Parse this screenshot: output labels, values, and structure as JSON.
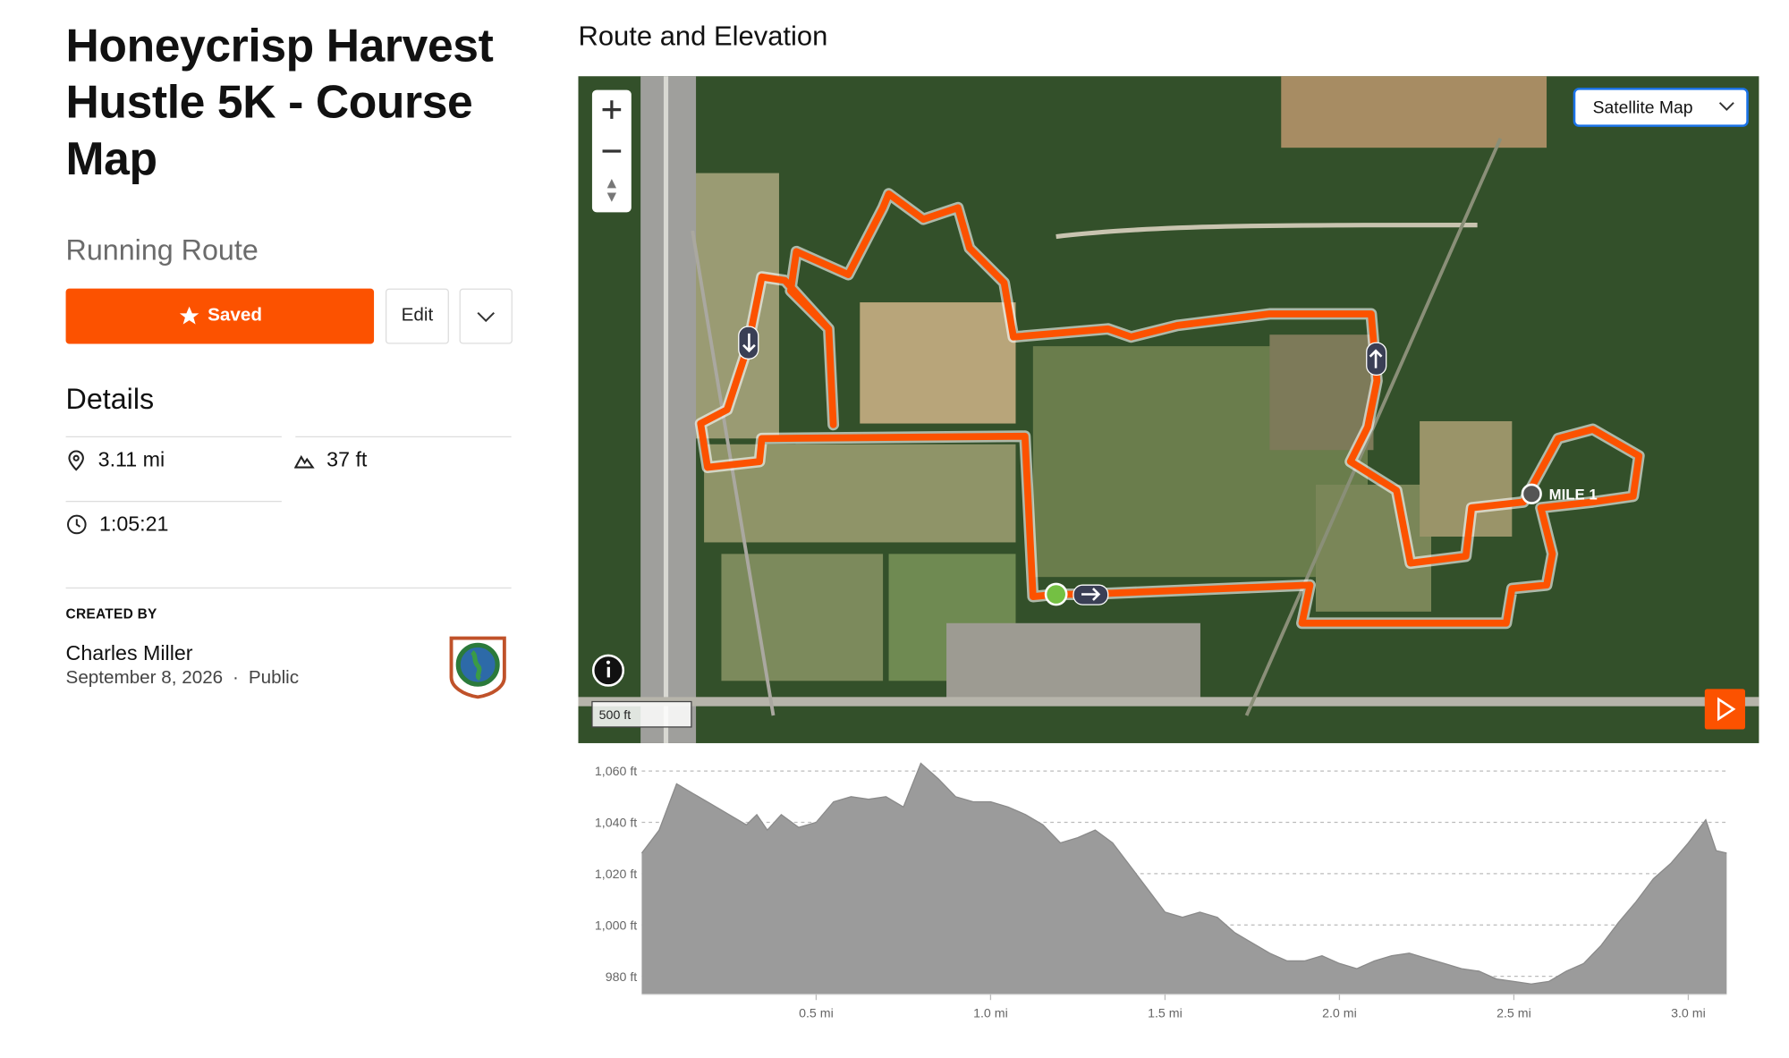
{
  "header": {
    "title": "Honeycrisp Harvest Hustle 5K - Course Map",
    "subtitle": "Running Route"
  },
  "actions": {
    "saved": "Saved",
    "edit": "Edit"
  },
  "details": {
    "heading": "Details",
    "distance": "3.11 mi",
    "elevation_gain": "37 ft",
    "duration": "1:05:21"
  },
  "creator": {
    "label": "CREATED BY",
    "name": "Charles Miller",
    "date": "September 8, 2026",
    "separator": "·",
    "visibility": "Public"
  },
  "map": {
    "heading": "Route and Elevation",
    "map_type": "Satellite Map",
    "marker": "MILE 1",
    "scale": "500 ft"
  },
  "chart_data": {
    "type": "area",
    "color": "#9b9b9b",
    "x": [
      0,
      0.05,
      0.1,
      0.15,
      0.2,
      0.25,
      0.3,
      0.33,
      0.36,
      0.4,
      0.45,
      0.5,
      0.55,
      0.6,
      0.65,
      0.7,
      0.75,
      0.8,
      0.85,
      0.9,
      0.95,
      1.0,
      1.05,
      1.1,
      1.15,
      1.2,
      1.25,
      1.3,
      1.35,
      1.4,
      1.45,
      1.5,
      1.55,
      1.6,
      1.65,
      1.7,
      1.75,
      1.8,
      1.85,
      1.9,
      1.95,
      2.0,
      2.05,
      2.1,
      2.15,
      2.2,
      2.25,
      2.3,
      2.35,
      2.4,
      2.45,
      2.5,
      2.55,
      2.6,
      2.65,
      2.7,
      2.75,
      2.8,
      2.85,
      2.9,
      2.95,
      3.0,
      3.05,
      3.08,
      3.11
    ],
    "values": [
      1028,
      1037,
      1055,
      1051,
      1047,
      1043,
      1039,
      1043,
      1037,
      1043,
      1038,
      1040,
      1048,
      1050,
      1049,
      1050,
      1046,
      1063,
      1057,
      1050,
      1048,
      1048,
      1046,
      1043,
      1039,
      1032,
      1034,
      1037,
      1032,
      1023,
      1014,
      1005,
      1003,
      1005,
      1003,
      997,
      993,
      989,
      986,
      986,
      988,
      985,
      983,
      986,
      988,
      989,
      987,
      985,
      983,
      982,
      979,
      978,
      977,
      978,
      982,
      985,
      992,
      1001,
      1009,
      1018,
      1024,
      1032,
      1041,
      1029,
      1028
    ],
    "xlim": [
      0,
      3.11
    ],
    "ylim": [
      973,
      1065
    ],
    "xticks": [
      {
        "value": 0.5,
        "label": "0.5 mi"
      },
      {
        "value": 1.0,
        "label": "1.0 mi"
      },
      {
        "value": 1.5,
        "label": "1.5 mi"
      },
      {
        "value": 2.0,
        "label": "2.0 mi"
      },
      {
        "value": 2.5,
        "label": "2.5 mi"
      },
      {
        "value": 3.0,
        "label": "3.0 mi"
      }
    ],
    "yticks": [
      {
        "value": 980,
        "label": "980 ft"
      },
      {
        "value": 1000,
        "label": "1,000 ft"
      },
      {
        "value": 1020,
        "label": "1,020 ft"
      },
      {
        "value": 1040,
        "label": "1,040 ft"
      },
      {
        "value": 1060,
        "label": "1,060 ft"
      }
    ],
    "grid": true
  }
}
